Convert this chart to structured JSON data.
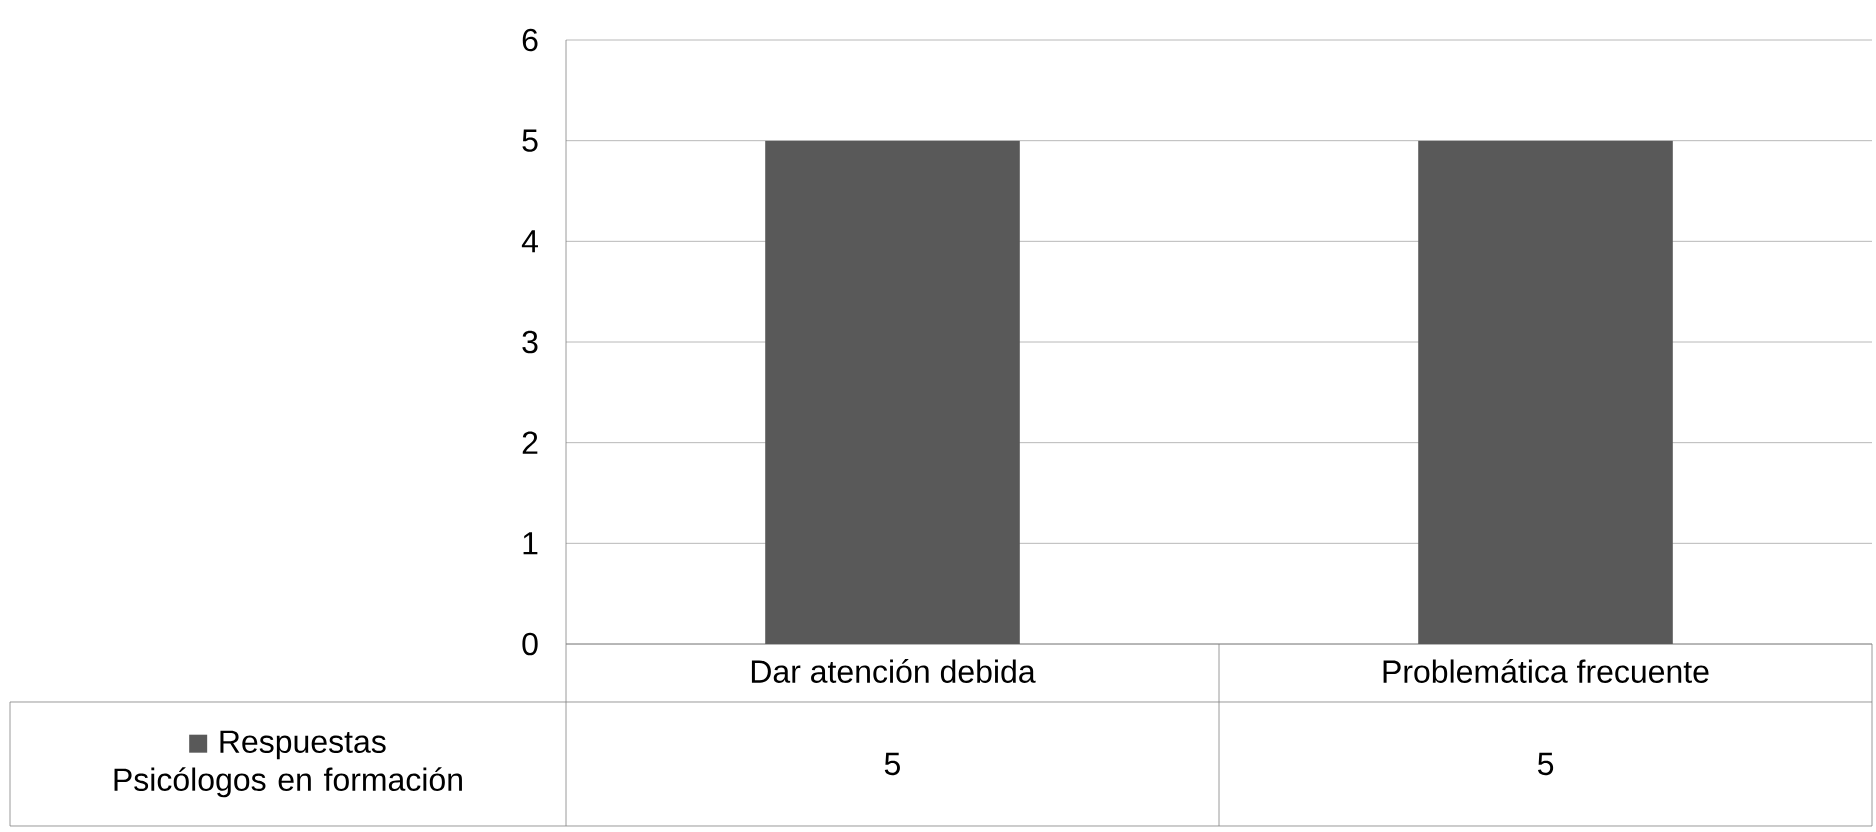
{
  "chart_data": {
    "type": "bar",
    "categories": [
      "Dar atención debida",
      "Problemática frecuente"
    ],
    "series": [
      {
        "name": "Respuestas Psicólogos en formación",
        "color": "#595959",
        "values": [
          5,
          5
        ]
      }
    ],
    "ylim": [
      0,
      6
    ],
    "yticks": [
      0,
      1,
      2,
      3,
      4,
      5,
      6
    ],
    "grid": "y",
    "data_labels": true,
    "legend": "bottom left"
  }
}
